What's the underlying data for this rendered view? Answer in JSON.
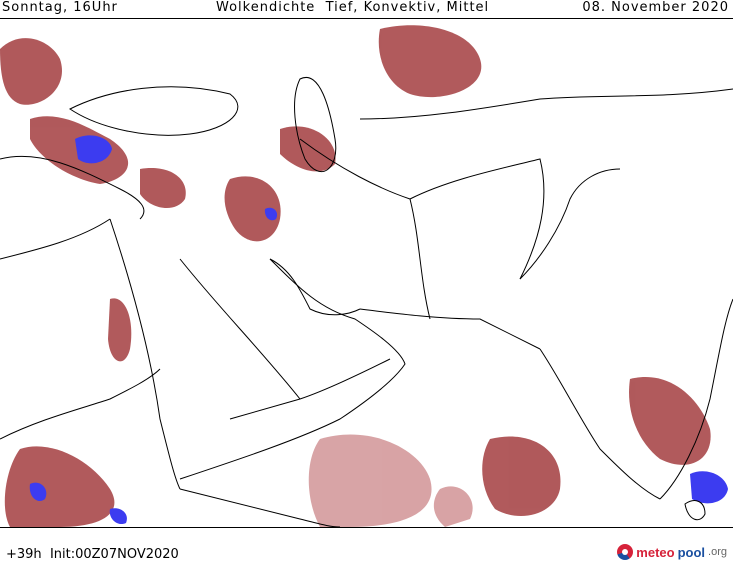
{
  "header": {
    "left": "Sonntag, 16Uhr",
    "title": "Wolkendichte  Tief, Konvektiv, Mittel",
    "date": "08. November 2020"
  },
  "footer": {
    "run_info": "+39h  Init:00Z07NOV2020",
    "brand_meteo": "meteo",
    "brand_pool": "pool",
    "brand_tld": ".org"
  },
  "legend_colors": {
    "low_cloud": "#a8484a",
    "medium_cloud": "#d49a9c",
    "convective": "#3c3cf0",
    "boundaries": "#000000"
  }
}
